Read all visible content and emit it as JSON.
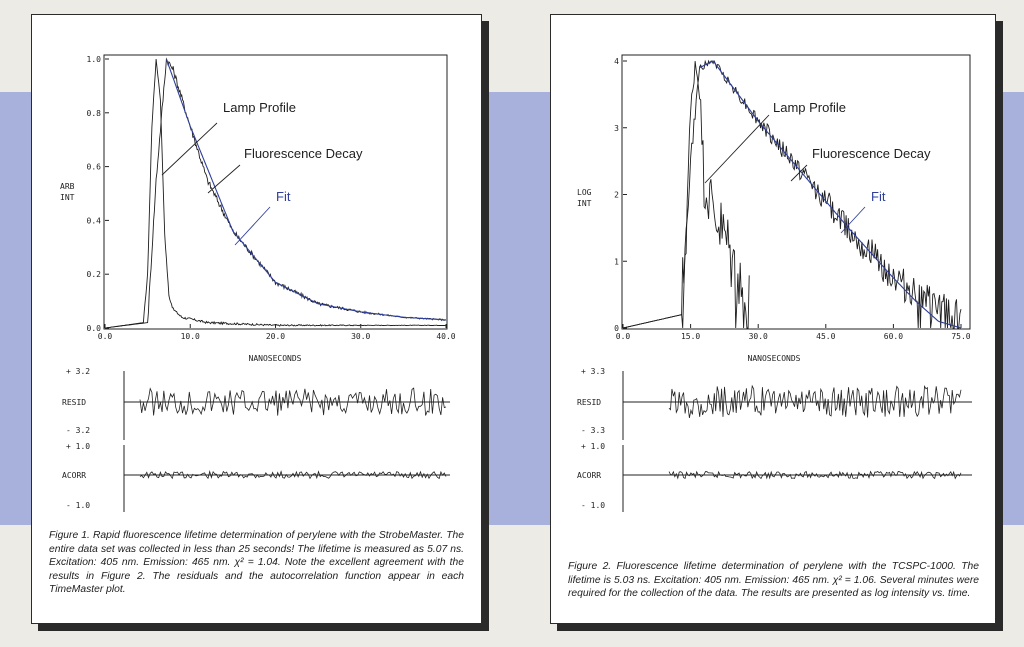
{
  "colors": {
    "band": "#a8b1dc",
    "page": "#ecebe6",
    "fit": "#2f3f9a",
    "ink": "#1e1e1e"
  },
  "figures": [
    {
      "caption": "Figure 1.  Rapid fluorescence lifetime determination of perylene with the StrobeMaster. The entire data set was collected in less than 25 seconds! The lifetime is measured as 5.07 ns. Excitation: 405 nm. Emission: 465 nm. χ² = 1.04. Note the excellent agreement with the results in Figure 2. The residuals and the autocorrelation function appear in each TimeMaster plot.",
      "annotations": {
        "lamp": "Lamp Profile",
        "decay": "Fluorescence Decay",
        "fit": "Fit"
      },
      "ylabel_line1": "ARB",
      "ylabel_line2": "INT",
      "xlabel": "NANOSECONDS",
      "resid_label": "RESID",
      "resid_top": "+ 3.2",
      "resid_bottom": "- 3.2",
      "acorr_label": "ACORR",
      "acorr_top": "+ 1.0",
      "acorr_bottom": "- 1.0",
      "xticks": [
        "0.0",
        "10.0",
        "20.0",
        "30.0",
        "40.0"
      ],
      "yticks": [
        "0.0",
        "0.2",
        "0.4",
        "0.6",
        "0.8",
        "1.0"
      ]
    },
    {
      "caption": "Figure 2.  Fluorescence lifetime determination of perylene with the TCSPC-1000. The lifetime is 5.03 ns. Excitation: 405 nm. Emission: 465 nm. χ² = 1.06. Several minutes were required for the collection of the data. The results are presented as log intensity vs. time.",
      "annotations": {
        "lamp": "Lamp Profile",
        "decay": "Fluorescence Decay",
        "fit": "Fit"
      },
      "ylabel_line1": "LOG",
      "ylabel_line2": "INT",
      "xlabel": "NANOSECONDS",
      "resid_label": "RESID",
      "resid_top": "+ 3.3",
      "resid_bottom": "- 3.3",
      "acorr_label": "ACORR",
      "acorr_top": "+ 1.0",
      "acorr_bottom": "- 1.0",
      "xticks": [
        "0.0",
        "15.0",
        "30.0",
        "45.0",
        "60.0",
        "75.0"
      ],
      "yticks": [
        "0",
        "1",
        "2",
        "3",
        "4"
      ]
    }
  ],
  "chart_data": [
    {
      "type": "line",
      "xlabel": "NANOSECONDS",
      "ylabel": "ARB INT",
      "xlim": [
        0,
        40
      ],
      "ylim": [
        0,
        1.0
      ],
      "series": [
        {
          "name": "Lamp Profile",
          "peak_x": 6.0,
          "x": [
            0,
            4.5,
            5.0,
            5.5,
            6.0,
            6.5,
            7.0,
            7.5,
            8.0,
            9.0,
            12.0,
            20.0,
            40.0
          ],
          "y": [
            0,
            0.02,
            0.2,
            0.75,
            1.0,
            0.85,
            0.35,
            0.12,
            0.07,
            0.04,
            0.02,
            0.01,
            0.01
          ]
        },
        {
          "name": "Fluorescence Decay",
          "peak_x": 7.2,
          "x": [
            0,
            5.0,
            6.0,
            7.2,
            8,
            10,
            12,
            15,
            20,
            25,
            30,
            35,
            40
          ],
          "y": [
            0,
            0.02,
            0.55,
            1.0,
            0.96,
            0.75,
            0.55,
            0.36,
            0.17,
            0.09,
            0.06,
            0.04,
            0.03
          ]
        },
        {
          "name": "Fit",
          "x": [
            7.2,
            10,
            15,
            20,
            25,
            30,
            35,
            40
          ],
          "y": [
            1.0,
            0.75,
            0.36,
            0.17,
            0.09,
            0.06,
            0.04,
            0.03
          ]
        }
      ],
      "residuals_range": [
        -3.2,
        3.2
      ],
      "acorr_range": [
        -1.0,
        1.0
      ]
    },
    {
      "type": "line",
      "xlabel": "NANOSECONDS",
      "ylabel": "LOG INT",
      "xlim": [
        0,
        75
      ],
      "ylim": [
        0,
        4
      ],
      "series": [
        {
          "name": "Lamp Profile",
          "x": [
            0,
            13,
            14,
            15,
            16,
            17,
            18,
            20,
            23,
            26,
            28
          ],
          "y": [
            0,
            0.2,
            1.5,
            3.2,
            4.0,
            3.6,
            2.2,
            1.8,
            1.3,
            0.6,
            0.2
          ]
        },
        {
          "name": "Fluorescence Decay",
          "x": [
            0,
            13,
            15,
            17,
            20,
            30,
            40,
            50,
            60,
            65,
            70,
            75
          ],
          "y": [
            0,
            0.2,
            2.5,
            3.9,
            4.0,
            3.1,
            2.3,
            1.5,
            0.75,
            0.5,
            0.25,
            0.2
          ]
        },
        {
          "name": "Fit",
          "x": [
            17,
            20,
            30,
            40,
            50,
            60,
            65,
            70,
            75
          ],
          "y": [
            3.9,
            4.0,
            3.1,
            2.3,
            1.5,
            0.75,
            0.4,
            0.1,
            0.0
          ]
        }
      ],
      "residuals_range": [
        -3.3,
        3.3
      ],
      "acorr_range": [
        -1.0,
        1.0
      ]
    }
  ]
}
